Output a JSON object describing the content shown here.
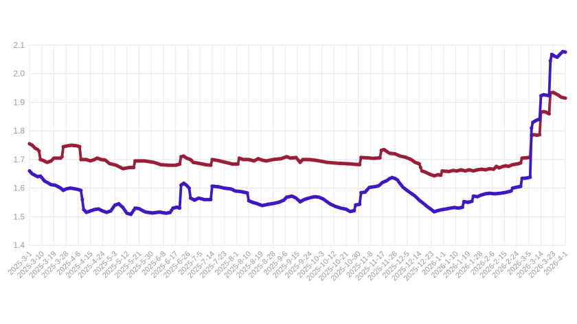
{
  "chart": {
    "background_color": "#ffffff",
    "grid_horizontal_color": "#e2e2e2",
    "grid_vertical_color": "#eaeaea",
    "axis_label_color": "#999999",
    "y_axis_font_px": 12,
    "x_axis_font_px": 11
  },
  "chart_data": {
    "type": "line",
    "title": "",
    "legend": "none",
    "grid": true,
    "marker": "circle",
    "ylim": [
      1.4,
      2.1
    ],
    "y_tick_step": 0.1,
    "y_tick_labels": [
      "1.4",
      "1.5",
      "1.6",
      "1.7",
      "1.8",
      "1.9",
      "2.0",
      "2.1"
    ],
    "x_total_days": 396,
    "x_tick_interval_days": 9,
    "x_tick_labels": [
      "2025-3-1",
      "2025-3-10",
      "2025-3-19",
      "2025-3-28",
      "2025-4-6",
      "2025-4-15",
      "2025-4-24",
      "2025-5-3",
      "2025-5-12",
      "2025-5-21",
      "2025-5-30",
      "2025-6-8",
      "2025-6-17",
      "2025-6-26",
      "2025-7-5",
      "2025-7-14",
      "2025-7-23",
      "2025-8-1",
      "2025-8-10",
      "2025-8-19",
      "2025-8-28",
      "2025-9-6",
      "2025-9-15",
      "2025-9-24",
      "2025-10-3",
      "2025-10-12",
      "2025-10-21",
      "2025-10-30",
      "2025-11-8",
      "2025-11-17",
      "2025-11-26",
      "2025-12-5",
      "2025-12-14",
      "2025-12-23",
      "2026-1-1",
      "2026-1-10",
      "2026-1-19",
      "2026-1-28",
      "2026-2-6",
      "2026-2-15",
      "2026-2-24",
      "2026-3-5",
      "2026-3-14",
      "2026-3-23",
      "2026-4-1"
    ],
    "series": [
      {
        "name": "red-series",
        "color": "#9b1e38",
        "points": [
          [
            0,
            1.755
          ],
          [
            2,
            1.75
          ],
          [
            4,
            1.74
          ],
          [
            6,
            1.735
          ],
          [
            7,
            1.73
          ],
          [
            8,
            1.7
          ],
          [
            10,
            1.697
          ],
          [
            13,
            1.69
          ],
          [
            16,
            1.695
          ],
          [
            18,
            1.705
          ],
          [
            23,
            1.705
          ],
          [
            24,
            1.71
          ],
          [
            25,
            1.745
          ],
          [
            28,
            1.748
          ],
          [
            31,
            1.75
          ],
          [
            35,
            1.748
          ],
          [
            37,
            1.745
          ],
          [
            38,
            1.7
          ],
          [
            42,
            1.7
          ],
          [
            45,
            1.695
          ],
          [
            48,
            1.7
          ],
          [
            50,
            1.705
          ],
          [
            53,
            1.7
          ],
          [
            56,
            1.698
          ],
          [
            59,
            1.686
          ],
          [
            64,
            1.68
          ],
          [
            69,
            1.668
          ],
          [
            74,
            1.672
          ],
          [
            77,
            1.672
          ],
          [
            78,
            1.695
          ],
          [
            85,
            1.695
          ],
          [
            92,
            1.69
          ],
          [
            97,
            1.682
          ],
          [
            103,
            1.68
          ],
          [
            108,
            1.68
          ],
          [
            111,
            1.684
          ],
          [
            112,
            1.71
          ],
          [
            114,
            1.712
          ],
          [
            116,
            1.705
          ],
          [
            119,
            1.7
          ],
          [
            121,
            1.69
          ],
          [
            126,
            1.686
          ],
          [
            130,
            1.682
          ],
          [
            134,
            1.68
          ],
          [
            135,
            1.7
          ],
          [
            139,
            1.697
          ],
          [
            145,
            1.69
          ],
          [
            150,
            1.684
          ],
          [
            154,
            1.684
          ],
          [
            155,
            1.705
          ],
          [
            158,
            1.7
          ],
          [
            162,
            1.7
          ],
          [
            166,
            1.695
          ],
          [
            169,
            1.703
          ],
          [
            172,
            1.698
          ],
          [
            175,
            1.695
          ],
          [
            180,
            1.7
          ],
          [
            186,
            1.703
          ],
          [
            190,
            1.71
          ],
          [
            193,
            1.705
          ],
          [
            197,
            1.707
          ],
          [
            200,
            1.69
          ],
          [
            202,
            1.7
          ],
          [
            207,
            1.7
          ],
          [
            212,
            1.697
          ],
          [
            220,
            1.69
          ],
          [
            228,
            1.687
          ],
          [
            236,
            1.685
          ],
          [
            241,
            1.683
          ],
          [
            244,
            1.682
          ],
          [
            245,
            1.707
          ],
          [
            250,
            1.706
          ],
          [
            254,
            1.704
          ],
          [
            259,
            1.706
          ],
          [
            260,
            1.732
          ],
          [
            262,
            1.735
          ],
          [
            266,
            1.722
          ],
          [
            270,
            1.72
          ],
          [
            274,
            1.712
          ],
          [
            278,
            1.708
          ],
          [
            282,
            1.7
          ],
          [
            285,
            1.69
          ],
          [
            288,
            1.685
          ],
          [
            290,
            1.66
          ],
          [
            293,
            1.655
          ],
          [
            296,
            1.648
          ],
          [
            299,
            1.643
          ],
          [
            302,
            1.647
          ],
          [
            304,
            1.645
          ],
          [
            305,
            1.66
          ],
          [
            310,
            1.658
          ],
          [
            313,
            1.662
          ],
          [
            316,
            1.66
          ],
          [
            319,
            1.664
          ],
          [
            322,
            1.66
          ],
          [
            325,
            1.664
          ],
          [
            328,
            1.66
          ],
          [
            331,
            1.664
          ],
          [
            334,
            1.666
          ],
          [
            337,
            1.664
          ],
          [
            340,
            1.668
          ],
          [
            343,
            1.666
          ],
          [
            345,
            1.676
          ],
          [
            347,
            1.671
          ],
          [
            350,
            1.676
          ],
          [
            352,
            1.678
          ],
          [
            354,
            1.676
          ],
          [
            357,
            1.682
          ],
          [
            361,
            1.685
          ],
          [
            363,
            1.688
          ],
          [
            364,
            1.705
          ],
          [
            367,
            1.706
          ],
          [
            370,
            1.708
          ],
          [
            371,
            1.785
          ],
          [
            373,
            1.787
          ],
          [
            375,
            1.785
          ],
          [
            377,
            1.787
          ],
          [
            378,
            1.865
          ],
          [
            380,
            1.868
          ],
          [
            382,
            1.865
          ],
          [
            384,
            1.86
          ],
          [
            385,
            1.933
          ],
          [
            387,
            1.935
          ],
          [
            389,
            1.93
          ],
          [
            391,
            1.925
          ],
          [
            393,
            1.918
          ],
          [
            395,
            1.916
          ],
          [
            396,
            1.915
          ]
        ]
      },
      {
        "name": "blue-series",
        "color": "#3d18c3",
        "points": [
          [
            0,
            1.66
          ],
          [
            2,
            1.65
          ],
          [
            4,
            1.645
          ],
          [
            6,
            1.64
          ],
          [
            8,
            1.642
          ],
          [
            9,
            1.637
          ],
          [
            11,
            1.625
          ],
          [
            13,
            1.62
          ],
          [
            16,
            1.612
          ],
          [
            19,
            1.61
          ],
          [
            21,
            1.605
          ],
          [
            23,
            1.6
          ],
          [
            25,
            1.592
          ],
          [
            27,
            1.597
          ],
          [
            30,
            1.6
          ],
          [
            33,
            1.598
          ],
          [
            36,
            1.595
          ],
          [
            38,
            1.592
          ],
          [
            39,
            1.56
          ],
          [
            40,
            1.525
          ],
          [
            42,
            1.515
          ],
          [
            45,
            1.52
          ],
          [
            48,
            1.525
          ],
          [
            51,
            1.527
          ],
          [
            54,
            1.52
          ],
          [
            57,
            1.515
          ],
          [
            60,
            1.52
          ],
          [
            63,
            1.54
          ],
          [
            66,
            1.545
          ],
          [
            69,
            1.532
          ],
          [
            72,
            1.512
          ],
          [
            75,
            1.508
          ],
          [
            78,
            1.53
          ],
          [
            81,
            1.528
          ],
          [
            84,
            1.52
          ],
          [
            86,
            1.516
          ],
          [
            91,
            1.513
          ],
          [
            96,
            1.516
          ],
          [
            101,
            1.512
          ],
          [
            104,
            1.515
          ],
          [
            106,
            1.53
          ],
          [
            109,
            1.533
          ],
          [
            111,
            1.53
          ],
          [
            112,
            1.61
          ],
          [
            114,
            1.617
          ],
          [
            116,
            1.61
          ],
          [
            118,
            1.6
          ],
          [
            119,
            1.565
          ],
          [
            122,
            1.558
          ],
          [
            125,
            1.565
          ],
          [
            129,
            1.56
          ],
          [
            134,
            1.56
          ],
          [
            135,
            1.607
          ],
          [
            139,
            1.605
          ],
          [
            144,
            1.6
          ],
          [
            149,
            1.597
          ],
          [
            152,
            1.59
          ],
          [
            156,
            1.588
          ],
          [
            160,
            1.584
          ],
          [
            161,
            1.583
          ],
          [
            162,
            1.556
          ],
          [
            165,
            1.55
          ],
          [
            168,
            1.546
          ],
          [
            172,
            1.539
          ],
          [
            176,
            1.543
          ],
          [
            180,
            1.546
          ],
          [
            184,
            1.55
          ],
          [
            188,
            1.558
          ],
          [
            190,
            1.568
          ],
          [
            194,
            1.572
          ],
          [
            197,
            1.565
          ],
          [
            200,
            1.552
          ],
          [
            203,
            1.56
          ],
          [
            207,
            1.566
          ],
          [
            211,
            1.57
          ],
          [
            214,
            1.568
          ],
          [
            217,
            1.562
          ],
          [
            222,
            1.545
          ],
          [
            226,
            1.536
          ],
          [
            230,
            1.53
          ],
          [
            234,
            1.526
          ],
          [
            237,
            1.518
          ],
          [
            240,
            1.521
          ],
          [
            241,
            1.541
          ],
          [
            244,
            1.543
          ],
          [
            245,
            1.584
          ],
          [
            248,
            1.586
          ],
          [
            251,
            1.602
          ],
          [
            255,
            1.605
          ],
          [
            258,
            1.608
          ],
          [
            261,
            1.62
          ],
          [
            264,
            1.626
          ],
          [
            266,
            1.633
          ],
          [
            268,
            1.637
          ],
          [
            270,
            1.634
          ],
          [
            272,
            1.628
          ],
          [
            274,
            1.615
          ],
          [
            276,
            1.603
          ],
          [
            279,
            1.592
          ],
          [
            282,
            1.582
          ],
          [
            285,
            1.572
          ],
          [
            288,
            1.558
          ],
          [
            291,
            1.547
          ],
          [
            294,
            1.535
          ],
          [
            297,
            1.525
          ],
          [
            299,
            1.517
          ],
          [
            301,
            1.52
          ],
          [
            304,
            1.524
          ],
          [
            308,
            1.527
          ],
          [
            311,
            1.53
          ],
          [
            314,
            1.532
          ],
          [
            317,
            1.53
          ],
          [
            320,
            1.533
          ],
          [
            321,
            1.553
          ],
          [
            324,
            1.55
          ],
          [
            327,
            1.554
          ],
          [
            328,
            1.572
          ],
          [
            331,
            1.57
          ],
          [
            334,
            1.576
          ],
          [
            337,
            1.58
          ],
          [
            340,
            1.582
          ],
          [
            344,
            1.58
          ],
          [
            348,
            1.582
          ],
          [
            352,
            1.585
          ],
          [
            356,
            1.59
          ],
          [
            357,
            1.6
          ],
          [
            360,
            1.603
          ],
          [
            363,
            1.606
          ],
          [
            364,
            1.634
          ],
          [
            367,
            1.635
          ],
          [
            370,
            1.638
          ],
          [
            371,
            1.81
          ],
          [
            372,
            1.83
          ],
          [
            374,
            1.836
          ],
          [
            376,
            1.84
          ],
          [
            377,
            1.84
          ],
          [
            378,
            1.923
          ],
          [
            380,
            1.927
          ],
          [
            382,
            1.925
          ],
          [
            384,
            1.923
          ],
          [
            385,
            2.045
          ],
          [
            386,
            2.068
          ],
          [
            388,
            2.062
          ],
          [
            390,
            2.058
          ],
          [
            392,
            2.068
          ],
          [
            394,
            2.078
          ],
          [
            396,
            2.076
          ]
        ]
      }
    ]
  }
}
